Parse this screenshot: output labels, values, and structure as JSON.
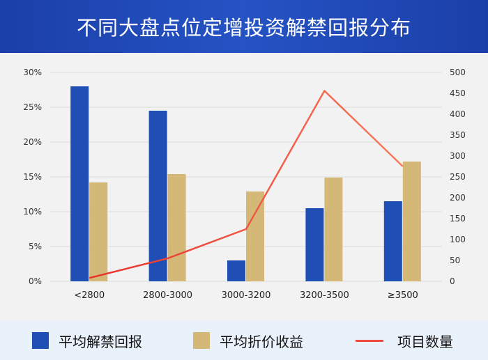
{
  "title": "不同大盘点位定增投资解禁回报分布",
  "chart_data": {
    "type": "bar",
    "categories": [
      "<2800",
      "2800-3000",
      "3000-3200",
      "3200-3500",
      "≥3500"
    ],
    "series": [
      {
        "name": "平均解禁回报",
        "type": "bar",
        "axis": "left",
        "color": "#1f4fb5",
        "values": [
          0.28,
          0.245,
          0.03,
          0.105,
          0.115
        ]
      },
      {
        "name": "平均折价收益",
        "type": "bar",
        "axis": "left",
        "color": "#d4b877",
        "values": [
          0.142,
          0.154,
          0.129,
          0.149,
          0.172
        ]
      },
      {
        "name": "项目数量",
        "type": "line",
        "axis": "right",
        "color": "#f04a3c",
        "values": [
          8,
          55,
          125,
          456,
          275
        ]
      }
    ],
    "y_left": {
      "min": 0,
      "max": 0.3,
      "ticks": [
        "0%",
        "5%",
        "10%",
        "15%",
        "20%",
        "25%",
        "30%"
      ]
    },
    "y_right": {
      "min": 0,
      "max": 500,
      "ticks": [
        "0",
        "50",
        "100",
        "150",
        "200",
        "250",
        "300",
        "350",
        "400",
        "450",
        "500"
      ]
    },
    "grid": true,
    "legend_position": "bottom"
  }
}
